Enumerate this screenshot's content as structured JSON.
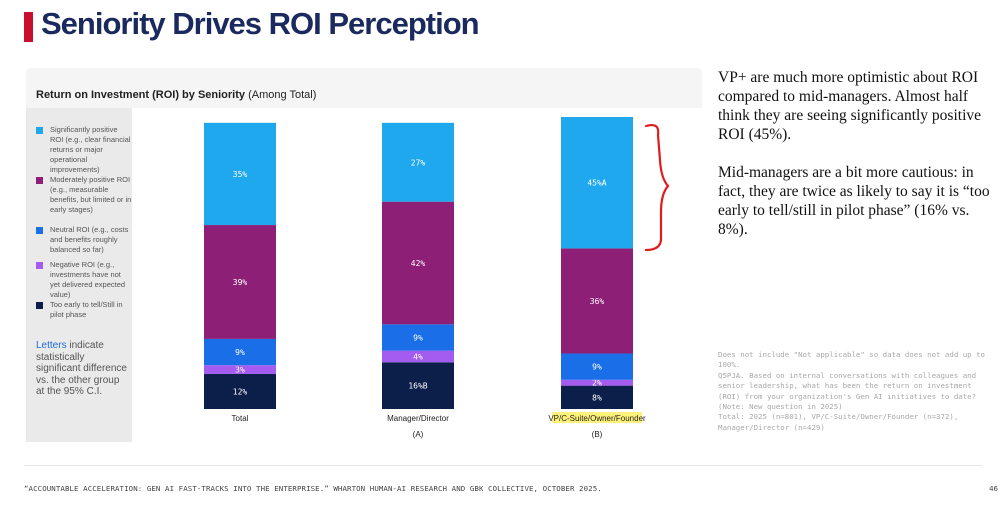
{
  "slide": {
    "title": "Seniority Drives ROI Perception",
    "source": "“ACCOUNTABLE ACCELERATION: GEN AI FAST-TRACKS INTO THE ENTERPRISE.” WHARTON HUMAN-AI RESEARCH AND GBK COLLECTIVE, OCTOBER 2025.",
    "page_number": "46"
  },
  "chart_header": {
    "bold": "Return on Investment (ROI) by Seniority",
    "normal": " (Among Total)"
  },
  "legend": [
    {
      "label": "Significantly positive ROI (e.g., clear financial returns or major operational improvements)",
      "color": "#1fa8ee"
    },
    {
      "label": "Moderately positive ROI (e.g., measurable benefits, but limited or in early stages)",
      "color": "#8e1f76"
    },
    {
      "label": "Neutral ROI (e.g., costs and benefits roughly balanced so far)",
      "color": "#1a6fe8"
    },
    {
      "label": "Negative ROI (e.g., investments have not yet delivered expected value)",
      "color": "#a45cf0"
    },
    {
      "label": "Too early to tell/Still in pilot phase",
      "color": "#0c1e4a"
    }
  ],
  "letters_note": {
    "highlight": "Letters",
    "rest": " indicate statistically significant difference vs. the other group at the 95% C.I."
  },
  "chart_data": {
    "type": "bar",
    "stacked": true,
    "categories": [
      "Total",
      "Manager/Director",
      "VP/C-Suite/Owner/Founder"
    ],
    "category_letters": [
      "",
      "(A)",
      "(B)"
    ],
    "series": [
      {
        "name": "Too early to tell/Still in pilot phase",
        "color": "#0c1e4a",
        "values": [
          12,
          16,
          8
        ],
        "labels": [
          "12%",
          "16%B",
          "8%"
        ]
      },
      {
        "name": "Negative ROI",
        "color": "#a45cf0",
        "values": [
          3,
          4,
          2
        ],
        "labels": [
          "3%",
          "4%",
          "2%"
        ]
      },
      {
        "name": "Neutral ROI",
        "color": "#1a6fe8",
        "values": [
          9,
          9,
          9
        ],
        "labels": [
          "9%",
          "9%",
          "9%"
        ]
      },
      {
        "name": "Moderately positive ROI",
        "color": "#8e1f76",
        "values": [
          39,
          42,
          36
        ],
        "labels": [
          "39%",
          "42%",
          "36%"
        ]
      },
      {
        "name": "Significantly positive ROI",
        "color": "#1fa8ee",
        "values": [
          35,
          27,
          45
        ],
        "labels": [
          "35%",
          "27%",
          "45%A"
        ]
      }
    ],
    "highlight_category_color": "#fff27a",
    "bracket_color": "#e01b1b"
  },
  "commentary": {
    "para1": "VP+ are much more optimistic about ROI compared to mid-managers. Almost half think they are seeing significantly positive ROI (45%).",
    "para2": "Mid-managers are a bit more cautious: in fact, they are twice as  likely to say it is “too early to tell/still in pilot phase” (16% vs. 8%)."
  },
  "footnote": "Does not include \"Not applicable\" so data does not add up to 100%.\nQ5PJA. Based on internal conversations with colleagues and senior leadership, what has been the return on investment (ROI) from your organization's Gen AI initiatives to date?\n(Note: New question in 2025)\nTotal: 2025 (n=801), VP/C-Suite/Owner/Founder (n=372), Manager/Director (n=429)"
}
